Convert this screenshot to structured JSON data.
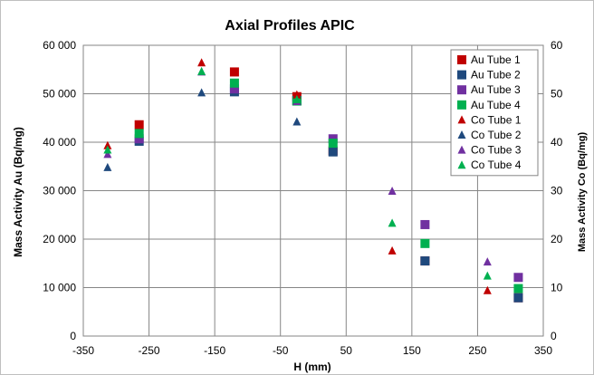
{
  "chart_data": {
    "type": "scatter",
    "title": "Axial Profiles APIC",
    "xlabel": "H (mm)",
    "ylabel_left": "Mass Activity Au (Bq/mg)",
    "ylabel_right": "Mass Activity Co (Bq/mg)",
    "xlim": [
      -350,
      350
    ],
    "ylim_left": [
      0,
      60000
    ],
    "ylim_right": [
      0,
      60
    ],
    "x_ticks": [
      -350,
      -250,
      -150,
      -50,
      50,
      150,
      250,
      350
    ],
    "x_tick_labels": [
      "-350",
      "-250",
      "-150",
      "-50",
      "50",
      "150",
      "250",
      "350"
    ],
    "y_left_ticks": [
      0,
      10000,
      20000,
      30000,
      40000,
      50000,
      60000
    ],
    "y_left_tick_labels": [
      "0",
      "10 000",
      "20 000",
      "30 000",
      "40 000",
      "50 000",
      "60 000"
    ],
    "y_right_ticks": [
      0,
      10,
      20,
      30,
      40,
      50,
      60
    ],
    "y_right_tick_labels": [
      "0",
      "10",
      "20",
      "30",
      "40",
      "50",
      "60"
    ],
    "grid": true,
    "legend_position": "top-right",
    "series": [
      {
        "name": "Au Tube 1",
        "marker": "square",
        "axis": "left",
        "color": "#c00000",
        "points": [
          [
            -265,
            43600
          ],
          [
            -120,
            54500
          ],
          [
            -25,
            49400
          ],
          [
            30,
            38200
          ],
          [
            170,
            15500
          ],
          [
            312,
            7900
          ]
        ]
      },
      {
        "name": "Au Tube 2",
        "marker": "square",
        "axis": "left",
        "color": "#1f497d",
        "points": [
          [
            -265,
            40200
          ],
          [
            -120,
            50400
          ],
          [
            -25,
            48600
          ],
          [
            30,
            38000
          ],
          [
            170,
            15500
          ],
          [
            312,
            7900
          ]
        ]
      },
      {
        "name": "Au Tube 3",
        "marker": "square",
        "axis": "left",
        "color": "#7030a0",
        "points": [
          [
            -265,
            40700
          ],
          [
            -120,
            51000
          ],
          [
            -25,
            48500
          ],
          [
            30,
            40700
          ],
          [
            170,
            23000
          ],
          [
            312,
            12100
          ]
        ]
      },
      {
        "name": "Au Tube 4",
        "marker": "square",
        "axis": "left",
        "color": "#00b050",
        "points": [
          [
            -265,
            41800
          ],
          [
            -120,
            52200
          ],
          [
            -25,
            48500
          ],
          [
            30,
            39800
          ],
          [
            170,
            19100
          ],
          [
            312,
            9800
          ]
        ]
      },
      {
        "name": "Co Tube 1",
        "marker": "triangle",
        "axis": "right",
        "color": "#c00000",
        "points": [
          [
            -313,
            39.3
          ],
          [
            -170,
            56.4
          ],
          [
            -25,
            49.8
          ],
          [
            120,
            17.6
          ],
          [
            265,
            9.4
          ]
        ]
      },
      {
        "name": "Co Tube 2",
        "marker": "triangle",
        "axis": "right",
        "color": "#1f497d",
        "points": [
          [
            -313,
            34.8
          ],
          [
            -170,
            50.2
          ],
          [
            -25,
            44.2
          ]
        ]
      },
      {
        "name": "Co Tube 3",
        "marker": "triangle",
        "axis": "right",
        "color": "#7030a0",
        "points": [
          [
            -313,
            37.5
          ],
          [
            -170,
            54.5
          ],
          [
            -25,
            48.4
          ],
          [
            120,
            29.9
          ],
          [
            265,
            15.3
          ]
        ]
      },
      {
        "name": "Co Tube 4",
        "marker": "triangle",
        "axis": "right",
        "color": "#00b050",
        "points": [
          [
            -313,
            38.4
          ],
          [
            -170,
            54.6
          ],
          [
            -25,
            48.8
          ],
          [
            120,
            23.3
          ],
          [
            265,
            12.4
          ]
        ]
      }
    ]
  }
}
